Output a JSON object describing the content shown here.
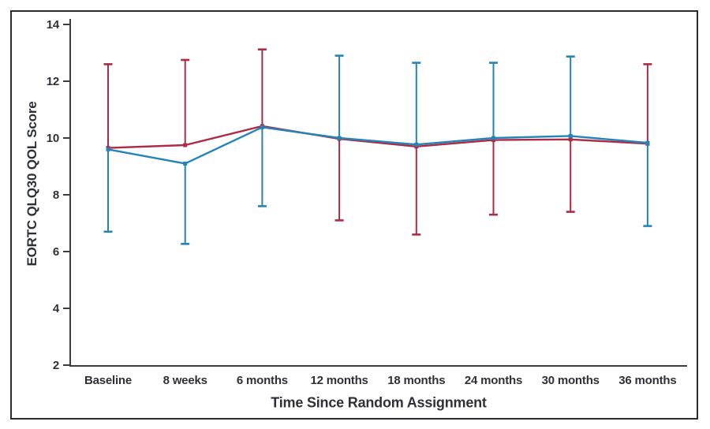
{
  "figure": {
    "kind": "published journal line chart with error bars",
    "background_color": "#ffffff",
    "border_color": "#2b2b2b",
    "axis_color": "#3d3d3f",
    "label_color": "#2f3138"
  },
  "chart_data": {
    "type": "line",
    "title": "",
    "xlabel": "Time Since Random Assignment",
    "ylabel": "EORTC QLQ30 QOL Score",
    "categories": [
      "Baseline",
      "8 weeks",
      "6 months",
      "12 months",
      "18 months",
      "24 months",
      "30 months",
      "36 months"
    ],
    "ylim": [
      2,
      14
    ],
    "yticks": [
      2,
      4,
      6,
      8,
      10,
      12,
      14
    ],
    "grid": false,
    "legend": "none",
    "error_bar_style": "one-sided with caps",
    "series": [
      {
        "name": "red-arm",
        "color": "#ab2c45",
        "values": [
          9.65,
          9.75,
          10.42,
          9.97,
          9.7,
          9.93,
          9.95,
          9.8
        ],
        "error_upper": [
          12.6,
          12.75,
          13.12,
          null,
          null,
          null,
          null,
          12.6
        ],
        "error_lower": [
          null,
          null,
          null,
          7.1,
          6.6,
          7.3,
          7.4,
          null
        ]
      },
      {
        "name": "blue-arm",
        "color": "#2583b5",
        "values": [
          9.6,
          9.1,
          10.38,
          10.0,
          9.77,
          10.0,
          10.07,
          9.83
        ],
        "error_upper": [
          null,
          null,
          null,
          12.9,
          12.65,
          12.65,
          12.87,
          null
        ],
        "error_lower": [
          6.7,
          6.27,
          7.6,
          null,
          null,
          null,
          null,
          6.9
        ]
      }
    ]
  }
}
